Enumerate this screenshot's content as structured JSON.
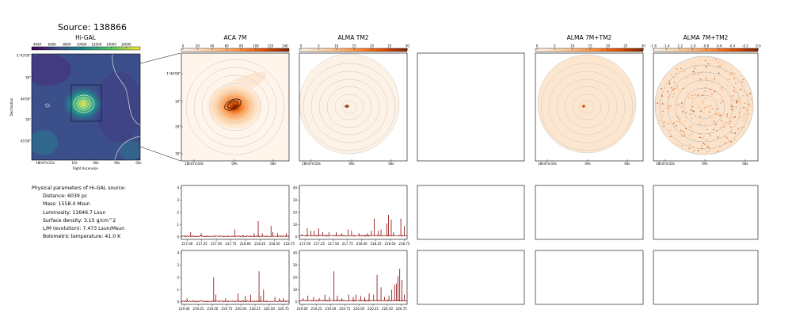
{
  "source_title": "Source: 138866",
  "panels": {
    "higal": {
      "title": "Hi-GAL",
      "colorbar_ticks": [
        "4000",
        "6000",
        "8000",
        "10000",
        "12000",
        "14000",
        "16000"
      ],
      "ylabel": "Declination",
      "xlabel": "Right Ascension",
      "yticks": [
        "-1°43'00\"",
        "30\"",
        "44'00\"",
        "30\"",
        "45'00\""
      ],
      "xticks": [
        "18h47m12s",
        "10s",
        "08s",
        "06s",
        "04s"
      ]
    },
    "aca": {
      "title": "ACA 7M",
      "colorbar_ticks": [
        "0",
        "20",
        "40",
        "60",
        "80",
        "100",
        "120",
        "140"
      ],
      "yticks": [
        "-1°44'00\"",
        "10\"",
        "20\"",
        "30\""
      ],
      "xticks": [
        "18h47m10s",
        "09s",
        "08s"
      ]
    },
    "tm2": {
      "title": "ALMA TM2",
      "colorbar_ticks": [
        "0",
        "5",
        "10",
        "15",
        "20",
        "25",
        "30"
      ],
      "xticks": [
        "18h47m10s",
        "09s",
        "08s"
      ]
    },
    "combo": {
      "title": "ALMA 7M+TM2",
      "colorbar_ticks": [
        "0",
        "5",
        "10",
        "15",
        "20",
        "25",
        "30"
      ],
      "xticks": [
        "18h47m10s",
        "09s",
        "08s"
      ]
    },
    "combo2": {
      "title": "ALMA 7M+TM2",
      "colorbar_ticks": [
        "-1.6",
        "-1.4",
        "-1.2",
        "-1.0",
        "-0.8",
        "-0.6",
        "-0.4",
        "-0.2",
        "0.0"
      ],
      "xticks": [
        "18h47m10s",
        "09s",
        "08s"
      ]
    }
  },
  "params": {
    "header": "Physical parameters of Hi-GAL source:",
    "lines": [
      "Distance: 6039 pc",
      "Mass: 1558.4 Msun",
      "Luminosity: 11646.7 Lsun",
      "Surface density: 3.15 g/cm^2",
      "L/M (evolution): 7.473 Lsun/Msun",
      "Bolometric temperature: 41.0 K"
    ]
  },
  "chart_data": [
    {
      "type": "line",
      "panel": "aca-spectrum-upper",
      "xlim": [
        216.9,
        218.75
      ],
      "ylim": [
        -0.2,
        4.2
      ],
      "xticks": [
        "217.00",
        "217.25",
        "217.50",
        "217.75",
        "218.00",
        "218.25",
        "218.50",
        "218.75"
      ],
      "yticks": [
        "0",
        "1",
        "2",
        "3",
        "4"
      ],
      "baseline": 0.05,
      "lines": [
        [
          217.06,
          0.4
        ],
        [
          217.24,
          0.3
        ],
        [
          217.82,
          0.6
        ],
        [
          218.15,
          0.3
        ],
        [
          218.22,
          1.3
        ],
        [
          218.29,
          0.3
        ],
        [
          218.44,
          0.9
        ],
        [
          218.47,
          0.4
        ],
        [
          218.55,
          0.3
        ],
        [
          218.7,
          0.3
        ]
      ]
    },
    {
      "type": "line",
      "panel": "tm2-spectrum-upper",
      "xlim": [
        216.9,
        218.8
      ],
      "ylim": [
        -2,
        42
      ],
      "xticks": [
        "217.00",
        "217.25",
        "217.50",
        "217.75",
        "218.00",
        "218.25",
        "218.50",
        "218.75"
      ],
      "yticks": [
        "0",
        "10",
        "20",
        "30",
        "40"
      ],
      "baseline": 1,
      "lines": [
        [
          216.95,
          2
        ],
        [
          217.04,
          7
        ],
        [
          217.1,
          5
        ],
        [
          217.16,
          5
        ],
        [
          217.24,
          7
        ],
        [
          217.31,
          4
        ],
        [
          217.42,
          4
        ],
        [
          217.55,
          4
        ],
        [
          217.65,
          3
        ],
        [
          217.76,
          6
        ],
        [
          217.82,
          5
        ],
        [
          217.95,
          3
        ],
        [
          218.1,
          3
        ],
        [
          218.17,
          5
        ],
        [
          218.22,
          15
        ],
        [
          218.29,
          5
        ],
        [
          218.34,
          6
        ],
        [
          218.44,
          11
        ],
        [
          218.47,
          18
        ],
        [
          218.52,
          14
        ],
        [
          218.56,
          4
        ],
        [
          218.69,
          15
        ],
        [
          218.75,
          9
        ]
      ]
    },
    {
      "type": "line",
      "panel": "aca-spectrum-lower",
      "xlim": [
        218.95,
        220.85
      ],
      "ylim": [
        -0.2,
        4.2
      ],
      "xticks": [
        "219.00",
        "219.25",
        "219.50",
        "219.75",
        "220.00",
        "220.25",
        "220.50",
        "220.75"
      ],
      "yticks": [
        "0",
        "1",
        "2",
        "3",
        "4"
      ],
      "baseline": 0.05,
      "lines": [
        [
          219.05,
          0.3
        ],
        [
          219.52,
          2.0
        ],
        [
          219.56,
          0.6
        ],
        [
          219.73,
          0.3
        ],
        [
          219.95,
          0.7
        ],
        [
          220.08,
          0.5
        ],
        [
          220.17,
          0.6
        ],
        [
          220.32,
          2.5
        ],
        [
          220.35,
          0.5
        ],
        [
          220.4,
          1.0
        ],
        [
          220.6,
          0.4
        ],
        [
          220.68,
          0.3
        ],
        [
          220.75,
          0.3
        ]
      ]
    },
    {
      "type": "line",
      "panel": "tm2-spectrum-lower",
      "xlim": [
        218.95,
        220.85
      ],
      "ylim": [
        -2,
        42
      ],
      "xticks": [
        "219.00",
        "219.25",
        "219.50",
        "219.75",
        "220.00",
        "220.25",
        "220.50",
        "220.75"
      ],
      "yticks": [
        "0",
        "10",
        "20",
        "30",
        "40"
      ],
      "baseline": 1,
      "lines": [
        [
          219.02,
          3
        ],
        [
          219.1,
          5
        ],
        [
          219.2,
          4
        ],
        [
          219.3,
          3
        ],
        [
          219.4,
          6
        ],
        [
          219.48,
          4
        ],
        [
          219.56,
          25
        ],
        [
          219.62,
          5
        ],
        [
          219.7,
          3
        ],
        [
          219.82,
          6
        ],
        [
          219.9,
          4
        ],
        [
          219.95,
          6
        ],
        [
          220.03,
          5
        ],
        [
          220.1,
          4
        ],
        [
          220.18,
          7
        ],
        [
          220.26,
          6
        ],
        [
          220.32,
          22
        ],
        [
          220.39,
          12
        ],
        [
          220.45,
          4
        ],
        [
          220.53,
          5
        ],
        [
          220.58,
          10
        ],
        [
          220.63,
          14
        ],
        [
          220.66,
          15
        ],
        [
          220.69,
          21
        ],
        [
          220.72,
          27
        ],
        [
          220.76,
          18
        ],
        [
          220.8,
          6
        ]
      ]
    }
  ],
  "colors": {
    "spectrum": "#8b0000",
    "higal_cmap": [
      "#440154",
      "#3b528b",
      "#21908d",
      "#5dc863",
      "#fde725"
    ],
    "heat_cmap": [
      "#fff5eb",
      "#fdd0a2",
      "#fd8d3c",
      "#d94801",
      "#7f2704"
    ]
  }
}
